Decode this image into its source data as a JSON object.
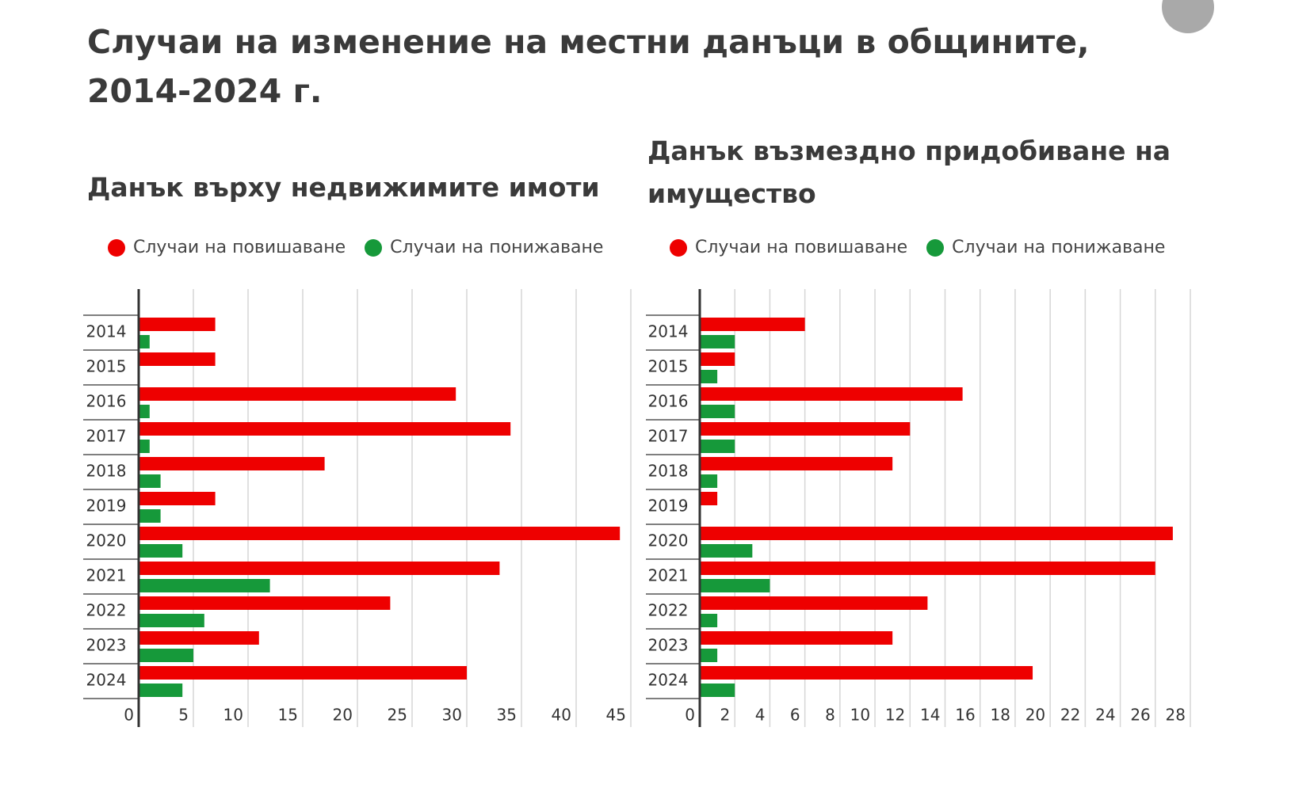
{
  "title": "Случаи на изменение на местни данъци в общините, 2014-2024 г.",
  "chart_data": [
    {
      "type": "bar",
      "orientation": "horizontal",
      "title": "Данък върху недвижимите имоти",
      "categories": [
        "2014",
        "2015",
        "2016",
        "2017",
        "2018",
        "2019",
        "2020",
        "2021",
        "2022",
        "2023",
        "2024"
      ],
      "series": [
        {
          "name": "Случаи на повишаване",
          "color": "#ee0000",
          "values": [
            7,
            7,
            29,
            34,
            17,
            7,
            44,
            33,
            23,
            11,
            30
          ]
        },
        {
          "name": "Случаи на понижаване",
          "color": "#16993a",
          "values": [
            1,
            0,
            1,
            1,
            2,
            2,
            4,
            12,
            6,
            5,
            4
          ]
        }
      ],
      "xlim": [
        0,
        45
      ],
      "xticks": [
        0,
        5,
        10,
        15,
        20,
        25,
        30,
        35,
        40,
        45
      ],
      "grid": true
    },
    {
      "type": "bar",
      "orientation": "horizontal",
      "title": "Данък възмездно придобиване на имущество",
      "categories": [
        "2014",
        "2015",
        "2016",
        "2017",
        "2018",
        "2019",
        "2020",
        "2021",
        "2022",
        "2023",
        "2024"
      ],
      "series": [
        {
          "name": "Случаи на повишаване",
          "color": "#ee0000",
          "values": [
            6,
            2,
            15,
            12,
            11,
            1,
            27,
            26,
            13,
            11,
            19
          ]
        },
        {
          "name": "Случаи на понижаване",
          "color": "#16993a",
          "values": [
            2,
            1,
            2,
            2,
            1,
            0,
            3,
            4,
            1,
            1,
            2
          ]
        }
      ],
      "xlim": [
        0,
        28
      ],
      "xticks": [
        0,
        2,
        4,
        6,
        8,
        10,
        12,
        14,
        16,
        18,
        20,
        22,
        24,
        26,
        28
      ],
      "grid": true
    }
  ]
}
